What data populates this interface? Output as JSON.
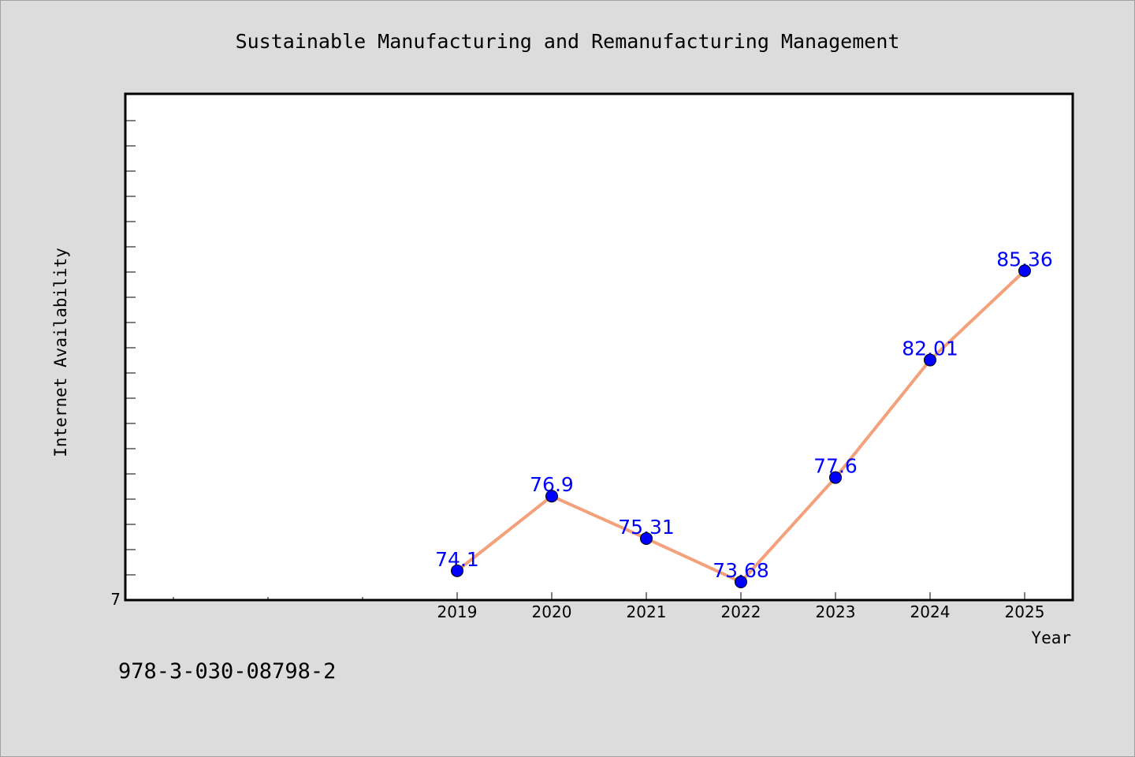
{
  "footer": {
    "isbn": "978-3-030-08798-2"
  },
  "colors": {
    "line": "#f4a07a",
    "marker": "#0000ff",
    "label": "#0000ff",
    "background": "#dcdcdc",
    "plot_background": "#ffffff"
  },
  "chart_data": {
    "type": "line",
    "title": "Sustainable Manufacturing and Remanufacturing Management",
    "xlabel": "Year",
    "ylabel": "Internet Availability",
    "categories": [
      "2019",
      "2020",
      "2021",
      "2022",
      "2023",
      "2024",
      "2025"
    ],
    "series": [
      {
        "values": [
          74.1,
          76.9,
          75.31,
          73.68,
          77.6,
          82.01,
          85.36
        ]
      }
    ],
    "data_labels": [
      "74.1",
      "76.9",
      "75.31",
      "73.68",
      "77.6",
      "82.01",
      "85.36"
    ],
    "y_tick_labels": [
      "7"
    ],
    "ylim": [
      73.0,
      92.0
    ],
    "grid": false,
    "legend": "none"
  }
}
